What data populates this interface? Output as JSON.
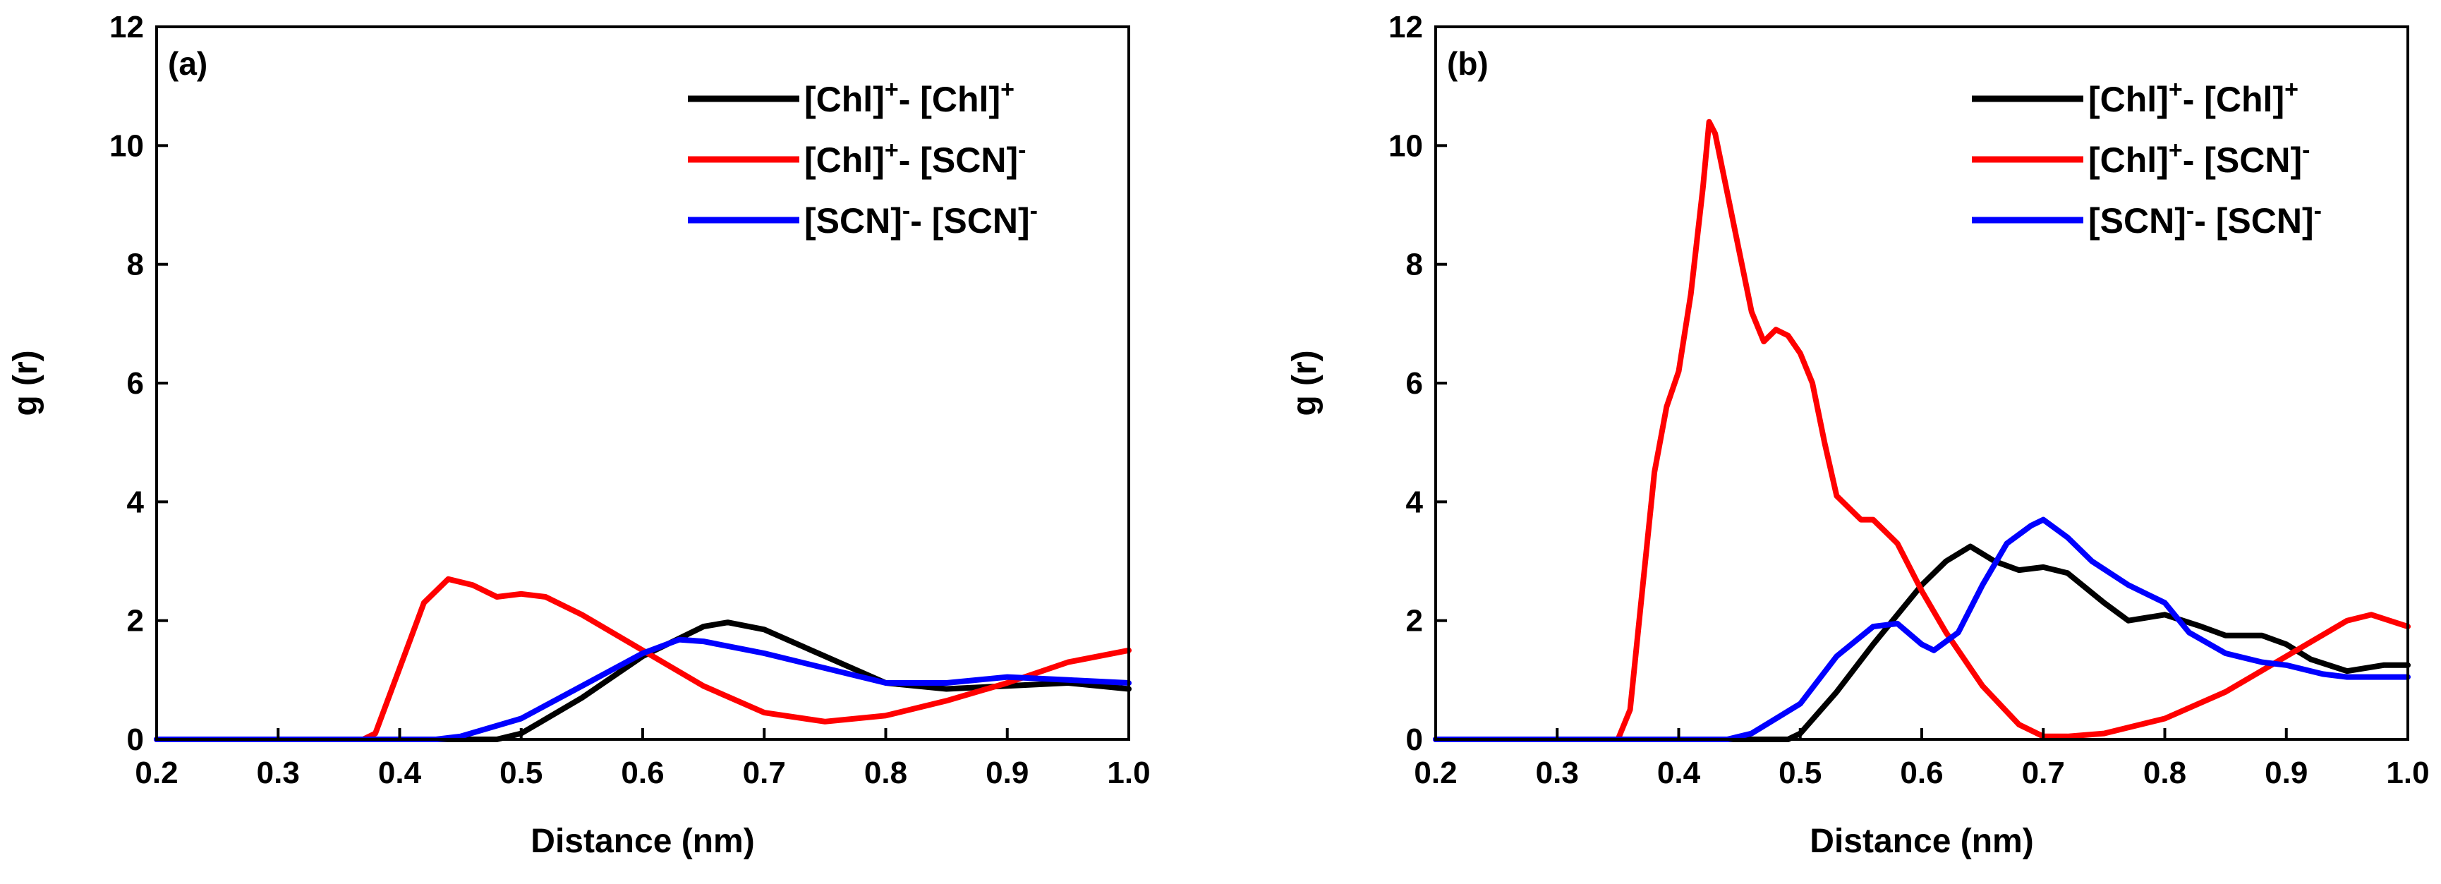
{
  "chart_data": [
    {
      "panel_label": "(a)",
      "type": "line",
      "title": "",
      "xlabel": "Distance (nm)",
      "ylabel": "g (r)",
      "xlim": [
        0.2,
        1.0
      ],
      "ylim": [
        0,
        12
      ],
      "xticks": [
        "0.2",
        "0.3",
        "0.4",
        "0.5",
        "0.6",
        "0.7",
        "0.8",
        "0.9",
        "1.0"
      ],
      "yticks": [
        "0",
        "2",
        "4",
        "6",
        "8",
        "10",
        "12"
      ],
      "legend_position": "top-right",
      "series": [
        {
          "name": "[Chl]+- [Chl]+",
          "legend": {
            "a": "[Chl]",
            "a_sup": "+",
            "sep": "- ",
            "b": "[Chl]",
            "b_sup": "+"
          },
          "color": "#000000",
          "points": [
            [
              0.2,
              0
            ],
            [
              0.48,
              0
            ],
            [
              0.5,
              0.1
            ],
            [
              0.55,
              0.7
            ],
            [
              0.6,
              1.4
            ],
            [
              0.65,
              1.9
            ],
            [
              0.67,
              1.97
            ],
            [
              0.7,
              1.85
            ],
            [
              0.75,
              1.4
            ],
            [
              0.8,
              0.95
            ],
            [
              0.85,
              0.85
            ],
            [
              0.9,
              0.9
            ],
            [
              0.95,
              0.95
            ],
            [
              1.0,
              0.85
            ]
          ]
        },
        {
          "name": "[Chl]+- [SCN]-",
          "legend": {
            "a": "[Chl]",
            "a_sup": "+",
            "sep": "- ",
            "b": "[SCN]",
            "b_sup": "-"
          },
          "color": "#ff0000",
          "points": [
            [
              0.2,
              0
            ],
            [
              0.37,
              0
            ],
            [
              0.38,
              0.1
            ],
            [
              0.4,
              1.2
            ],
            [
              0.42,
              2.3
            ],
            [
              0.44,
              2.7
            ],
            [
              0.46,
              2.6
            ],
            [
              0.48,
              2.4
            ],
            [
              0.5,
              2.45
            ],
            [
              0.52,
              2.4
            ],
            [
              0.55,
              2.1
            ],
            [
              0.6,
              1.5
            ],
            [
              0.65,
              0.9
            ],
            [
              0.7,
              0.45
            ],
            [
              0.75,
              0.3
            ],
            [
              0.8,
              0.4
            ],
            [
              0.85,
              0.65
            ],
            [
              0.9,
              0.95
            ],
            [
              0.95,
              1.3
            ],
            [
              1.0,
              1.5
            ]
          ]
        },
        {
          "name": "[SCN]-- [SCN]-",
          "legend": {
            "a": "[SCN]",
            "a_sup": "-",
            "sep": "- ",
            "b": "[SCN]",
            "b_sup": "-"
          },
          "color": "#0000ff",
          "points": [
            [
              0.2,
              0
            ],
            [
              0.43,
              0
            ],
            [
              0.45,
              0.05
            ],
            [
              0.5,
              0.35
            ],
            [
              0.55,
              0.9
            ],
            [
              0.6,
              1.45
            ],
            [
              0.63,
              1.68
            ],
            [
              0.65,
              1.65
            ],
            [
              0.7,
              1.45
            ],
            [
              0.75,
              1.2
            ],
            [
              0.8,
              0.95
            ],
            [
              0.85,
              0.95
            ],
            [
              0.9,
              1.05
            ],
            [
              0.95,
              1.0
            ],
            [
              1.0,
              0.95
            ]
          ]
        }
      ]
    },
    {
      "panel_label": "(b)",
      "type": "line",
      "title": "",
      "xlabel": "Distance (nm)",
      "ylabel": "g (r)",
      "xlim": [
        0.2,
        1.0
      ],
      "ylim": [
        0,
        12
      ],
      "xticks": [
        "0.2",
        "0.3",
        "0.4",
        "0.5",
        "0.6",
        "0.7",
        "0.8",
        "0.9",
        "1.0"
      ],
      "yticks": [
        "0",
        "2",
        "4",
        "6",
        "8",
        "10",
        "12"
      ],
      "legend_position": "top-right",
      "series": [
        {
          "name": "[Chl]+- [Chl]+",
          "legend": {
            "a": "[Chl]",
            "a_sup": "+",
            "sep": "- ",
            "b": "[Chl]",
            "b_sup": "+"
          },
          "color": "#000000",
          "points": [
            [
              0.2,
              0
            ],
            [
              0.49,
              0
            ],
            [
              0.5,
              0.1
            ],
            [
              0.53,
              0.8
            ],
            [
              0.56,
              1.6
            ],
            [
              0.6,
              2.6
            ],
            [
              0.62,
              3.0
            ],
            [
              0.64,
              3.25
            ],
            [
              0.66,
              3.0
            ],
            [
              0.68,
              2.85
            ],
            [
              0.7,
              2.9
            ],
            [
              0.72,
              2.8
            ],
            [
              0.75,
              2.3
            ],
            [
              0.77,
              2.0
            ],
            [
              0.8,
              2.1
            ],
            [
              0.83,
              1.9
            ],
            [
              0.85,
              1.75
            ],
            [
              0.88,
              1.75
            ],
            [
              0.9,
              1.6
            ],
            [
              0.92,
              1.35
            ],
            [
              0.95,
              1.15
            ],
            [
              0.98,
              1.25
            ],
            [
              1.0,
              1.25
            ]
          ]
        },
        {
          "name": "[Chl]+- [SCN]-",
          "legend": {
            "a": "[Chl]",
            "a_sup": "+",
            "sep": "- ",
            "b": "[SCN]",
            "b_sup": "-"
          },
          "color": "#ff0000",
          "points": [
            [
              0.2,
              0
            ],
            [
              0.35,
              0
            ],
            [
              0.36,
              0.5
            ],
            [
              0.37,
              2.5
            ],
            [
              0.38,
              4.5
            ],
            [
              0.39,
              5.6
            ],
            [
              0.4,
              6.2
            ],
            [
              0.41,
              7.5
            ],
            [
              0.42,
              9.3
            ],
            [
              0.425,
              10.4
            ],
            [
              0.43,
              10.2
            ],
            [
              0.44,
              9.2
            ],
            [
              0.45,
              8.2
            ],
            [
              0.46,
              7.2
            ],
            [
              0.47,
              6.7
            ],
            [
              0.48,
              6.9
            ],
            [
              0.49,
              6.8
            ],
            [
              0.5,
              6.5
            ],
            [
              0.51,
              6.0
            ],
            [
              0.52,
              5.0
            ],
            [
              0.53,
              4.1
            ],
            [
              0.55,
              3.7
            ],
            [
              0.56,
              3.7
            ],
            [
              0.58,
              3.3
            ],
            [
              0.6,
              2.5
            ],
            [
              0.62,
              1.8
            ],
            [
              0.65,
              0.9
            ],
            [
              0.68,
              0.25
            ],
            [
              0.7,
              0.05
            ],
            [
              0.72,
              0.05
            ],
            [
              0.75,
              0.1
            ],
            [
              0.8,
              0.35
            ],
            [
              0.85,
              0.8
            ],
            [
              0.9,
              1.4
            ],
            [
              0.95,
              2.0
            ],
            [
              0.97,
              2.1
            ],
            [
              1.0,
              1.9
            ]
          ]
        },
        {
          "name": "[SCN]-- [SCN]-",
          "legend": {
            "a": "[SCN]",
            "a_sup": "-",
            "sep": "- ",
            "b": "[SCN]",
            "b_sup": "-"
          },
          "color": "#0000ff",
          "points": [
            [
              0.2,
              0
            ],
            [
              0.44,
              0
            ],
            [
              0.46,
              0.1
            ],
            [
              0.5,
              0.6
            ],
            [
              0.53,
              1.4
            ],
            [
              0.56,
              1.9
            ],
            [
              0.58,
              1.95
            ],
            [
              0.6,
              1.6
            ],
            [
              0.61,
              1.5
            ],
            [
              0.63,
              1.8
            ],
            [
              0.65,
              2.6
            ],
            [
              0.67,
              3.3
            ],
            [
              0.69,
              3.6
            ],
            [
              0.7,
              3.7
            ],
            [
              0.72,
              3.4
            ],
            [
              0.74,
              3.0
            ],
            [
              0.77,
              2.6
            ],
            [
              0.8,
              2.3
            ],
            [
              0.82,
              1.8
            ],
            [
              0.85,
              1.45
            ],
            [
              0.88,
              1.3
            ],
            [
              0.9,
              1.25
            ],
            [
              0.93,
              1.1
            ],
            [
              0.95,
              1.05
            ],
            [
              1.0,
              1.05
            ]
          ]
        }
      ]
    }
  ]
}
